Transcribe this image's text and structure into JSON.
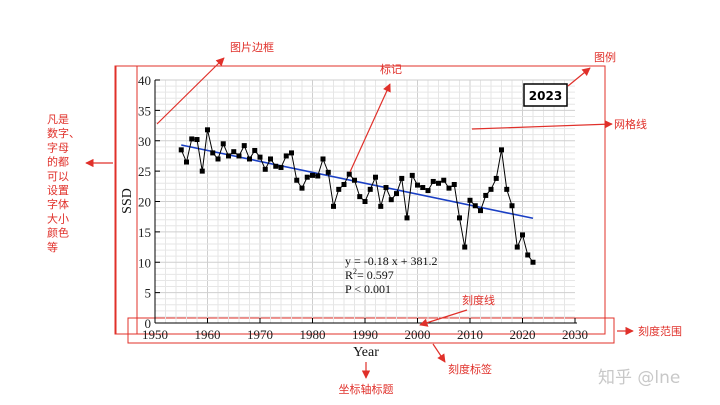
{
  "chart_data": {
    "type": "scatter",
    "xlabel": "Year",
    "ylabel": "SSD",
    "xlim": [
      1950,
      2030
    ],
    "ylim": [
      0,
      40
    ],
    "xticks": [
      1950,
      1960,
      1970,
      1980,
      1990,
      2000,
      2010,
      2020,
      2030
    ],
    "yticks": [
      0,
      5,
      10,
      15,
      20,
      25,
      30,
      35,
      40
    ],
    "grid": true,
    "legend": "2023",
    "legend_position": "top-right",
    "series_color": "#000000",
    "trend_color": "#1a3fc4",
    "points": [
      [
        1955,
        28.5
      ],
      [
        1956,
        26.5
      ],
      [
        1957,
        30.3
      ],
      [
        1958,
        30.2
      ],
      [
        1959,
        25.0
      ],
      [
        1960,
        31.8
      ],
      [
        1961,
        28.0
      ],
      [
        1962,
        27.0
      ],
      [
        1963,
        29.5
      ],
      [
        1964,
        27.5
      ],
      [
        1965,
        28.2
      ],
      [
        1966,
        27.5
      ],
      [
        1967,
        29.2
      ],
      [
        1968,
        27.0
      ],
      [
        1969,
        28.4
      ],
      [
        1970,
        27.3
      ],
      [
        1971,
        25.3
      ],
      [
        1972,
        27.0
      ],
      [
        1973,
        25.8
      ],
      [
        1974,
        25.6
      ],
      [
        1975,
        27.5
      ],
      [
        1976,
        28.0
      ],
      [
        1977,
        23.5
      ],
      [
        1978,
        22.2
      ],
      [
        1979,
        24.0
      ],
      [
        1980,
        24.3
      ],
      [
        1981,
        24.2
      ],
      [
        1982,
        27.0
      ],
      [
        1983,
        24.8
      ],
      [
        1984,
        19.2
      ],
      [
        1985,
        22.0
      ],
      [
        1986,
        22.8
      ],
      [
        1987,
        24.5
      ],
      [
        1988,
        23.5
      ],
      [
        1989,
        20.8
      ],
      [
        1990,
        20.0
      ],
      [
        1991,
        22.0
      ],
      [
        1992,
        24.0
      ],
      [
        1993,
        19.2
      ],
      [
        1994,
        22.3
      ],
      [
        1995,
        20.3
      ],
      [
        1996,
        21.3
      ],
      [
        1997,
        23.8
      ],
      [
        1998,
        17.3
      ],
      [
        1999,
        24.3
      ],
      [
        2000,
        22.7
      ],
      [
        2001,
        22.3
      ],
      [
        2002,
        21.8
      ],
      [
        2003,
        23.3
      ],
      [
        2004,
        23.0
      ],
      [
        2005,
        23.5
      ],
      [
        2006,
        22.2
      ],
      [
        2007,
        22.8
      ],
      [
        2008,
        17.3
      ],
      [
        2009,
        12.5
      ],
      [
        2010,
        20.2
      ],
      [
        2011,
        19.3
      ],
      [
        2012,
        18.5
      ],
      [
        2013,
        21.0
      ],
      [
        2014,
        22.0
      ],
      [
        2015,
        23.8
      ],
      [
        2016,
        28.5
      ],
      [
        2017,
        22.0
      ],
      [
        2018,
        19.3
      ],
      [
        2019,
        12.5
      ],
      [
        2020,
        14.5
      ],
      [
        2021,
        11.2
      ],
      [
        2022,
        10.0
      ]
    ],
    "trendline": {
      "slope": -0.18,
      "intercept": 381.2,
      "x_range": [
        1955,
        2022
      ]
    },
    "stats": {
      "equation": "y = -0.18 x + 381.2",
      "r2_prefix": "R",
      "r2_sup": "2",
      "r2_value": "= 0.597",
      "p_value": "P < 0.001"
    }
  },
  "annotations": {
    "image_border": "图片边框",
    "marker": "标记",
    "legend": "图例",
    "gridline": "网格线",
    "font_note": [
      "凡是",
      "数字、",
      "字母",
      "的都",
      "可以",
      "设置",
      "字体",
      "大小",
      "颜色",
      "等"
    ],
    "tick_line": "刻度线",
    "tick_range": "刻度范围",
    "tick_label": "刻度标签",
    "axis_title": "坐标轴标题"
  },
  "watermark": "知乎 @lne",
  "colors": {
    "annotation": "#e0302a",
    "box": "#e0302a"
  }
}
